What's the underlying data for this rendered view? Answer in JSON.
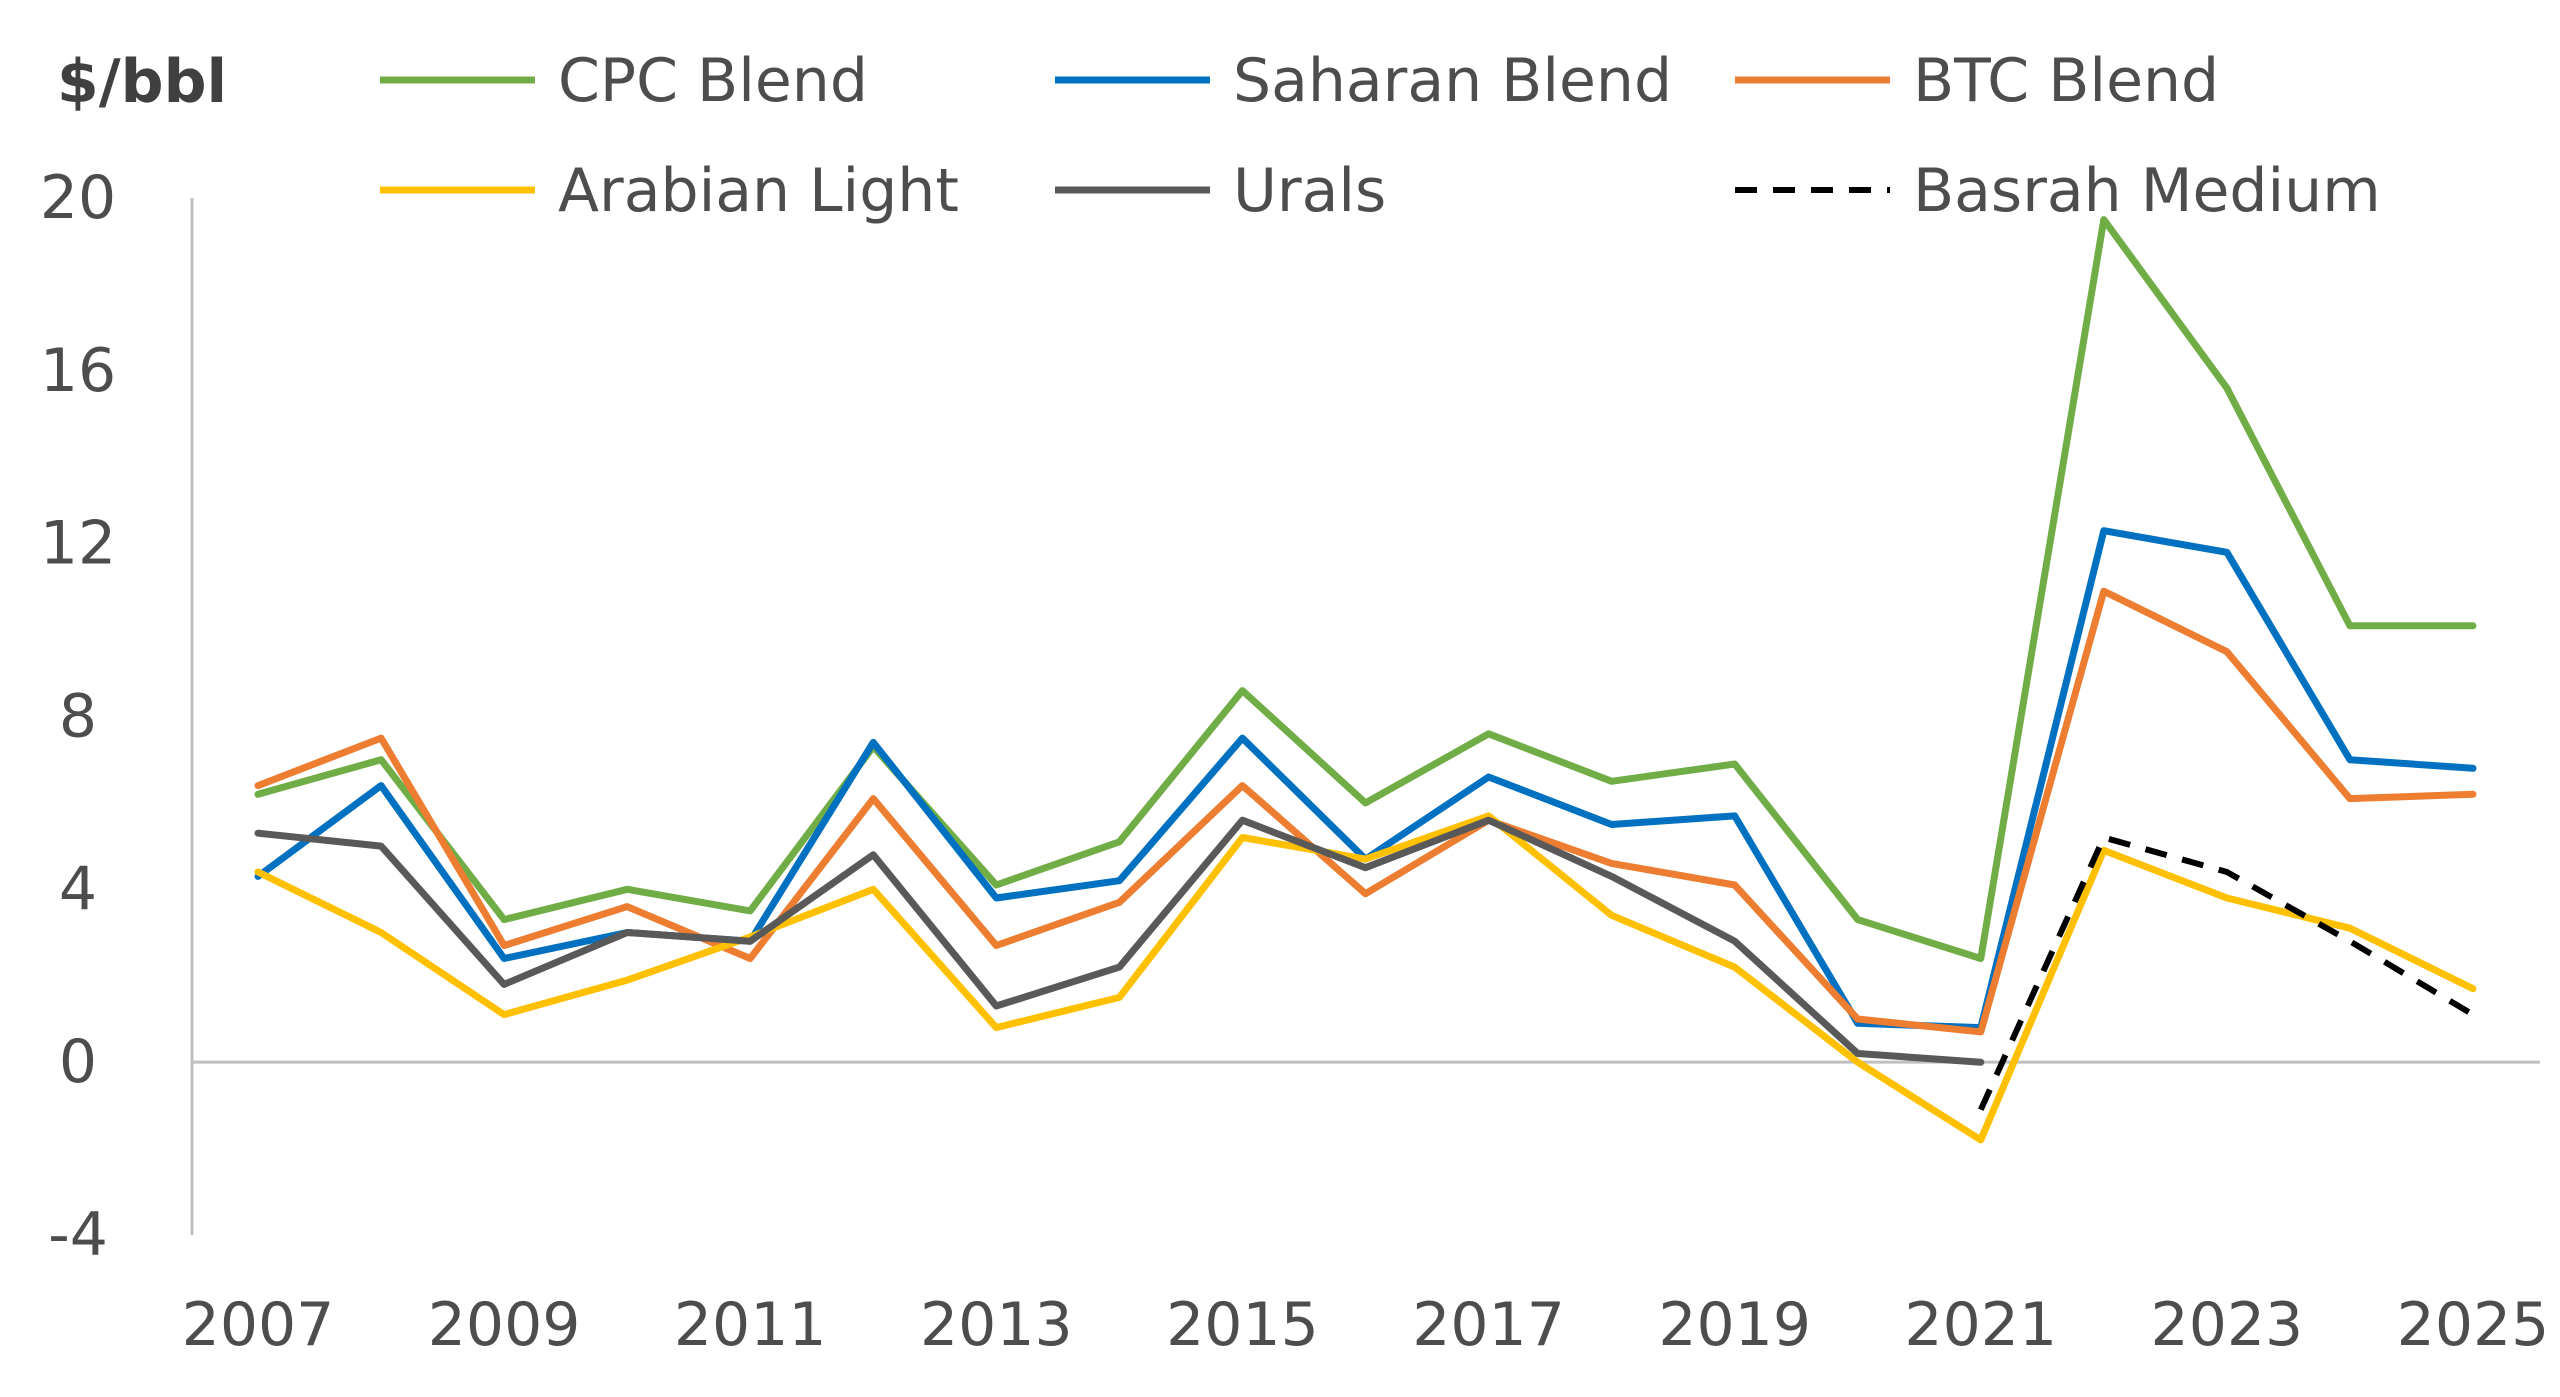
{
  "chart_data": {
    "type": "line",
    "ylabel": "$/bbl",
    "ylim": [
      -4,
      20
    ],
    "yticks": [
      "20",
      "16",
      "12",
      "8",
      "4",
      "0",
      "-4"
    ],
    "x": [
      2007,
      2008,
      2009,
      2010,
      2011,
      2012,
      2013,
      2014,
      2015,
      2016,
      2017,
      2018,
      2019,
      2020,
      2021,
      2022,
      2023,
      2024,
      2025
    ],
    "xticks": [
      "2007",
      "2009",
      "2011",
      "2013",
      "2015",
      "2017",
      "2019",
      "2021",
      "2023",
      "2025"
    ],
    "grid": false,
    "legend_position": "top",
    "series": [
      {
        "name": "CPC Blend",
        "color": "#70ad47",
        "dash": false,
        "values": [
          6.2,
          7.0,
          3.3,
          4.0,
          3.5,
          7.3,
          4.1,
          5.1,
          8.6,
          6.0,
          7.6,
          6.5,
          6.9,
          3.3,
          2.4,
          19.5,
          15.6,
          10.1,
          10.1
        ]
      },
      {
        "name": "Saharan Blend",
        "color": "#0070c0",
        "dash": false,
        "values": [
          4.3,
          6.4,
          2.4,
          3.0,
          2.8,
          7.4,
          3.8,
          4.2,
          7.5,
          4.7,
          6.6,
          5.5,
          5.7,
          0.9,
          0.8,
          12.3,
          11.8,
          7.0,
          6.8
        ]
      },
      {
        "name": "BTC Blend",
        "color": "#ed7d31",
        "dash": false,
        "values": [
          6.4,
          7.5,
          2.7,
          3.6,
          2.4,
          6.1,
          2.7,
          3.7,
          6.4,
          3.9,
          5.6,
          4.6,
          4.1,
          1.0,
          0.7,
          10.9,
          9.5,
          6.1,
          6.2
        ]
      },
      {
        "name": "Arabian Light",
        "color": "#ffc000",
        "dash": false,
        "values": [
          4.4,
          3.0,
          1.1,
          1.9,
          2.9,
          4.0,
          0.8,
          1.5,
          5.2,
          4.7,
          5.7,
          3.4,
          2.2,
          0.0,
          -1.8,
          4.9,
          3.8,
          3.1,
          1.7
        ]
      },
      {
        "name": "Urals",
        "color": "#595959",
        "dash": false,
        "values": [
          5.3,
          5.0,
          1.8,
          3.0,
          2.8,
          4.8,
          1.3,
          2.2,
          5.6,
          4.5,
          5.6,
          4.3,
          2.8,
          0.2,
          0.0,
          null,
          null,
          null,
          null
        ]
      },
      {
        "name": "Basrah Medium",
        "color": "#000000",
        "dash": true,
        "values": [
          null,
          null,
          null,
          null,
          null,
          null,
          null,
          null,
          null,
          null,
          null,
          null,
          null,
          null,
          -1.1,
          5.2,
          4.4,
          2.8,
          1.1
        ]
      }
    ]
  }
}
